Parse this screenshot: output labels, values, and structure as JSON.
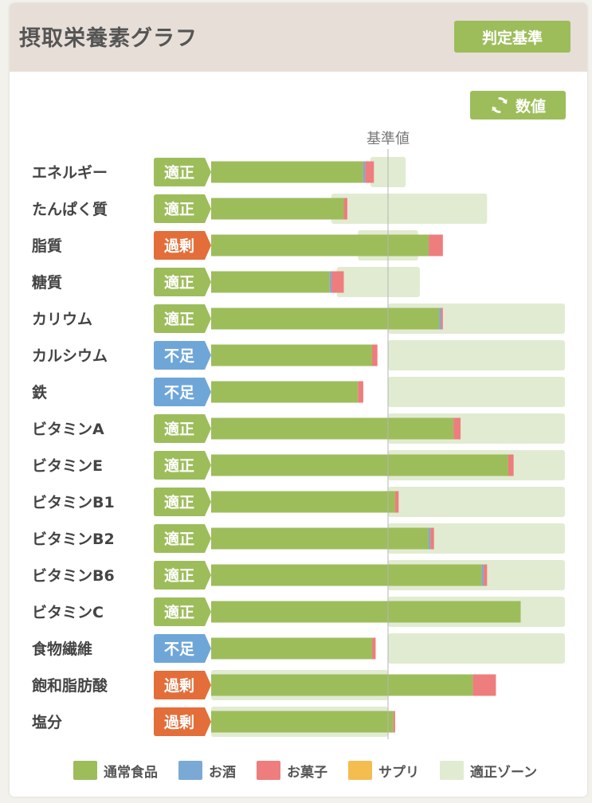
{
  "header": {
    "title": "摂取栄養素グラフ",
    "criteria_button": "判定基準"
  },
  "toolbar": {
    "value_button": "数値",
    "value_icon": "refresh-icon"
  },
  "colors": {
    "normal_food": "#9dbd5b",
    "alcohol": "#7ba9d6",
    "snacks": "#ee7d7d",
    "supplement": "#f4bd4f",
    "zone": "#e1ebd1",
    "badge_ok": "#9dbd5b",
    "badge_excess": "#e36e3a",
    "badge_deficit": "#6fa6d8"
  },
  "chart_data": {
    "type": "bar",
    "orientation": "horizontal",
    "stacked": true,
    "unit": "% of 基準値",
    "reference_label": "基準値",
    "reference_value": 100,
    "xlim": [
      0,
      200
    ],
    "categories": [
      "エネルギー",
      "たんぱく質",
      "脂質",
      "糖質",
      "カリウム",
      "カルシウム",
      "鉄",
      "ビタミンA",
      "ビタミンE",
      "ビタミンB1",
      "ビタミンB2",
      "ビタミンB6",
      "ビタミンC",
      "食物繊維",
      "飽和脂肪酸",
      "塩分"
    ],
    "status": [
      "適正",
      "適正",
      "過剰",
      "適正",
      "適正",
      "不足",
      "不足",
      "適正",
      "適正",
      "適正",
      "適正",
      "適正",
      "適正",
      "不足",
      "過剰",
      "過剰"
    ],
    "series": [
      {
        "name": "通常食品",
        "values": [
          86,
          75,
          123,
          67,
          129,
          91,
          83,
          137,
          168,
          104,
          123,
          153,
          175,
          91,
          148,
          103
        ]
      },
      {
        "name": "お酒",
        "values": [
          1,
          0,
          0,
          1,
          1,
          0,
          0,
          0,
          0,
          0,
          1,
          1,
          0,
          0,
          0,
          0
        ]
      },
      {
        "name": "お菓子",
        "values": [
          5,
          2,
          8,
          7,
          1,
          3,
          3,
          4,
          3,
          2,
          2,
          2,
          0,
          2,
          13,
          1
        ]
      },
      {
        "name": "サプリ",
        "values": [
          0,
          0,
          0,
          0,
          0,
          0,
          0,
          0,
          0,
          0,
          0,
          0,
          0,
          0,
          0,
          0
        ]
      }
    ],
    "zones": [
      [
        90,
        110
      ],
      [
        68,
        156
      ],
      [
        83,
        117
      ],
      [
        71,
        118
      ],
      [
        100,
        200
      ],
      [
        100,
        200
      ],
      [
        100,
        200
      ],
      [
        100,
        200
      ],
      [
        100,
        200
      ],
      [
        100,
        200
      ],
      [
        100,
        200
      ],
      [
        100,
        200
      ],
      [
        100,
        200
      ],
      [
        100,
        200
      ],
      [
        0,
        100
      ],
      [
        0,
        100
      ]
    ],
    "legend": [
      "通常食品",
      "お酒",
      "お菓子",
      "サプリ",
      "適正ゾーン"
    ]
  }
}
